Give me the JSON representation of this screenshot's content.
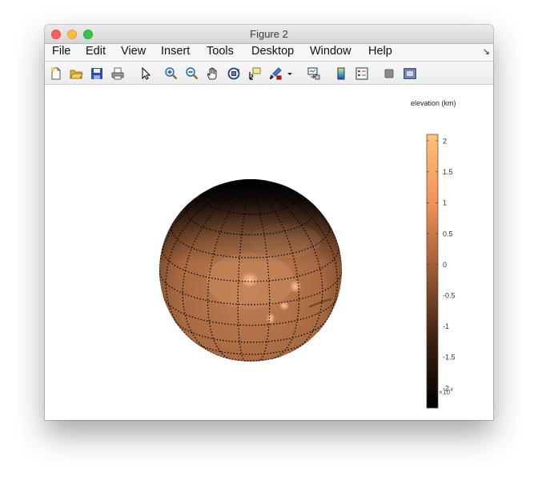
{
  "window": {
    "title": "Figure 2"
  },
  "menu": {
    "items": [
      "File",
      "Edit",
      "View",
      "Insert",
      "Tools",
      "Desktop",
      "Window",
      "Help"
    ],
    "overflow_icon": "dock-arrow-icon"
  },
  "toolbar": {
    "buttons": [
      "new-figure-icon",
      "open-folder-icon",
      "save-icon",
      "print-icon",
      "pointer-icon",
      "zoom-in-icon",
      "zoom-out-icon",
      "pan-hand-icon",
      "rotate-3d-icon",
      "data-cursor-icon",
      "brush-icon",
      "brush-dropdown-icon",
      "link-plot-icon",
      "colorbar-icon",
      "legend-icon",
      "hide-plot-tools-icon",
      "show-plot-tools-icon"
    ]
  },
  "figure": {
    "colorbar": {
      "label": "elevation (km)",
      "ticks": [
        "2",
        "1.5",
        "1",
        "0.5",
        "0",
        "-0.5",
        "-1",
        "-1.5",
        "-2"
      ],
      "exponent": "×10",
      "exponent_power": "4",
      "colors": [
        "#ffc178",
        "#f19257",
        "#9c5a32",
        "#3d2010",
        "#000000"
      ]
    },
    "globe": {
      "base_color": "#a86840",
      "highlight_color": "#f2ac7e",
      "grid_style": "dotted"
    }
  }
}
